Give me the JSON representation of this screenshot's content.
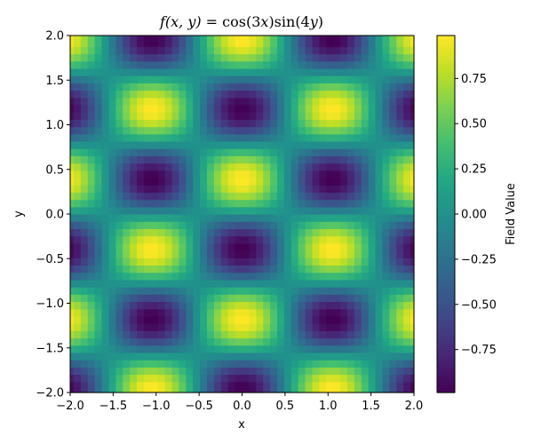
{
  "chart_data": {
    "type": "heatmap",
    "title_parts": {
      "func": "f",
      "args": "(x, y)",
      "eq": " = cos(3",
      "x1": "x",
      "mid": ")sin(4",
      "y1": "y",
      "close": ")"
    },
    "xlabel": "x",
    "ylabel": "y",
    "xlim": [
      -2.0,
      2.0
    ],
    "ylim": [
      -2.0,
      2.0
    ],
    "xticks": [
      -2.0,
      -1.5,
      -1.0,
      -0.5,
      0.0,
      0.5,
      1.0,
      1.5,
      2.0
    ],
    "xtick_labels": [
      "−2.0",
      "−1.5",
      "−1.0",
      "−0.5",
      "0.0",
      "0.5",
      "1.0",
      "1.5",
      "2.0"
    ],
    "yticks": [
      -2.0,
      -1.5,
      -1.0,
      -0.5,
      0.0,
      0.5,
      1.0,
      1.5,
      2.0
    ],
    "ytick_labels": [
      "−2.0",
      "−1.5",
      "−1.0",
      "−0.5",
      "0.0",
      "0.5",
      "1.0",
      "1.5",
      "2.0"
    ],
    "function": "cos(3x)*sin(4y)",
    "grid_resolution": 50,
    "value_range": [
      -0.9875,
      0.9875
    ],
    "colormap": "viridis",
    "colorbar": {
      "label": "Field Value",
      "ticks": [
        0.75,
        0.5,
        0.25,
        0.0,
        -0.25,
        -0.5,
        -0.75
      ],
      "tick_labels": [
        "0.75",
        "0.50",
        "0.25",
        "0.00",
        "−0.25",
        "−0.50",
        "−0.75"
      ]
    }
  }
}
